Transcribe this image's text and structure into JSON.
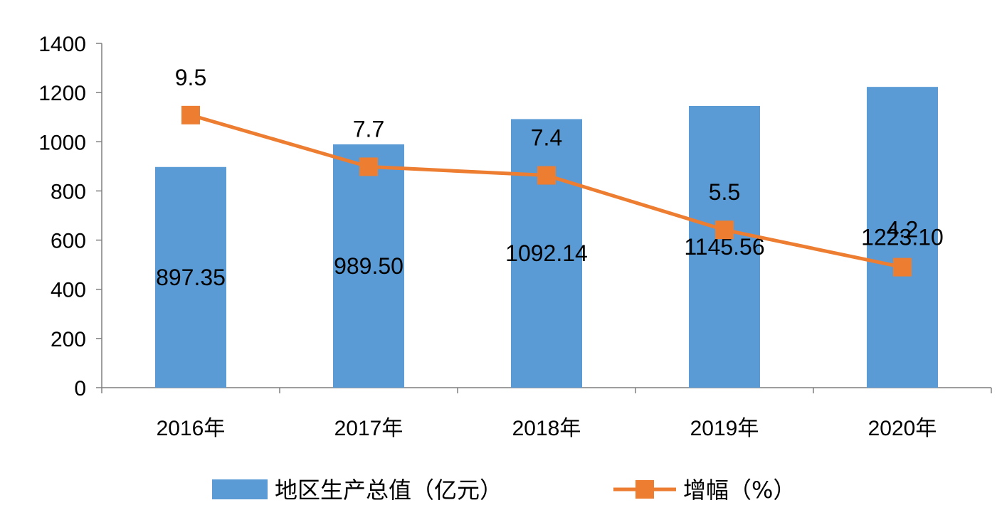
{
  "chart_data": {
    "type": "bar",
    "categories": [
      "2016年",
      "2017年",
      "2018年",
      "2019年",
      "2020年"
    ],
    "ylim": [
      0,
      1400
    ],
    "yticks": [
      0,
      200,
      400,
      600,
      800,
      1000,
      1200,
      1400
    ],
    "y2lim": [
      0,
      12
    ],
    "grid": false,
    "legend_position": "bottom",
    "series": [
      {
        "name": "地区生产总值（亿元）",
        "type": "bar",
        "axis": "primary",
        "values": [
          897.35,
          989.5,
          1092.14,
          1145.56,
          1223.1
        ],
        "labels": [
          "897.35",
          "989.50",
          "1092.14",
          "1145.56",
          "1223.10"
        ],
        "color": "#5B9BD5"
      },
      {
        "name": "增幅（%）",
        "type": "line",
        "axis": "secondary",
        "marker": "square",
        "values": [
          9.5,
          7.7,
          7.4,
          5.5,
          4.2
        ],
        "labels": [
          "9.5",
          "7.7",
          "7.4",
          "5.5",
          "4.2"
        ],
        "color": "#ED7D31"
      }
    ]
  }
}
